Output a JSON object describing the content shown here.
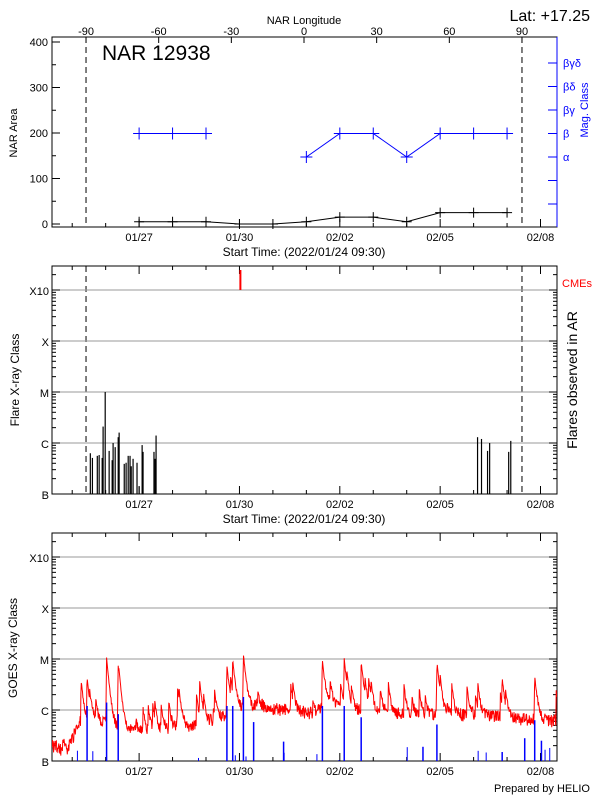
{
  "header": {
    "lat_label": "Lat: +17.25",
    "credit": "Prepared by HELIO"
  },
  "chart_data": [
    {
      "type": "line",
      "title": "NAR 12938",
      "top_axis_label": "NAR Longitude",
      "top_ticks": [
        "-90",
        "-60",
        "-30",
        "0",
        "30",
        "60",
        "90"
      ],
      "top_tick_values": [
        -90,
        -60,
        -30,
        0,
        30,
        60,
        90
      ],
      "limb_longitudes": [
        -90,
        90
      ],
      "ylabel": "NAR Area",
      "ylim": [
        0,
        400
      ],
      "yticks": [
        "0",
        "100",
        "200",
        "300",
        "400"
      ],
      "y2label": "Mag. Class",
      "y2_ticks": [
        "",
        "",
        "α",
        "β",
        "βγ",
        "βδ",
        "βγδ"
      ],
      "xlabel": "Start Time: (2022/01/24 09:30)",
      "xticks": [
        "01/27",
        "01/30",
        "02/02",
        "02/05",
        "02/08"
      ],
      "series": [
        {
          "key": "area",
          "color": "#000000",
          "points": [
            {
              "date": "01/27",
              "value": 5
            },
            {
              "date": "01/28",
              "value": 5
            },
            {
              "date": "01/29",
              "value": 5
            },
            {
              "date": "01/30",
              "value": 0
            },
            {
              "date": "01/31",
              "value": 0
            },
            {
              "date": "02/01",
              "value": 5
            },
            {
              "date": "02/02",
              "value": 15
            },
            {
              "date": "02/03",
              "value": 15
            },
            {
              "date": "02/04",
              "value": 5
            },
            {
              "date": "02/05",
              "value": 25
            },
            {
              "date": "02/06",
              "value": 25
            },
            {
              "date": "02/07",
              "value": 25
            }
          ]
        },
        {
          "key": "mag_class",
          "color": "#0000ff",
          "points": [
            {
              "date": "01/27",
              "value": "β"
            },
            {
              "date": "01/28",
              "value": "β"
            },
            {
              "date": "01/29",
              "value": "β"
            },
            {
              "date": "01/30",
              "value": null
            },
            {
              "date": "01/31",
              "value": null
            },
            {
              "date": "02/01",
              "value": "α"
            },
            {
              "date": "02/02",
              "value": "β"
            },
            {
              "date": "02/03",
              "value": "β"
            },
            {
              "date": "02/04",
              "value": "α"
            },
            {
              "date": "02/05",
              "value": "β"
            },
            {
              "date": "02/06",
              "value": "β"
            },
            {
              "date": "02/07",
              "value": "β"
            }
          ]
        }
      ]
    },
    {
      "type": "bar",
      "ylabel": "Flare X-ray Class",
      "y2label": "Flares observed in AR",
      "yticks": [
        "B",
        "C",
        "M",
        "X",
        "X10"
      ],
      "xlabel": "Start Time: (2022/01/24 09:30)",
      "xticks": [
        "01/27",
        "01/30",
        "02/02",
        "02/05",
        "02/08"
      ],
      "grid": true,
      "cme_label": "CMEs",
      "cme_color": "#ff0000",
      "cmes": [
        "01/30 00:40"
      ],
      "flares": [
        {
          "time": "01/25 13:00",
          "class": "B6.3"
        },
        {
          "time": "01/25 14:30",
          "class": "B5.1"
        },
        {
          "time": "01/25 18:00",
          "class": "B5.6"
        },
        {
          "time": "01/25 19:20",
          "class": "B5.8"
        },
        {
          "time": "01/25 21:30",
          "class": "B5.1"
        },
        {
          "time": "01/25 22:10",
          "class": "C2.1"
        },
        {
          "time": "01/25 23:40",
          "class": "M1.0"
        },
        {
          "time": "01/26 02:30",
          "class": "B7.0"
        },
        {
          "time": "01/26 04:40",
          "class": "B4.6"
        },
        {
          "time": "01/26 05:20",
          "class": "C1.0"
        },
        {
          "time": "01/26 06:50",
          "class": "B8.3"
        },
        {
          "time": "01/26 09:00",
          "class": "C1.3"
        },
        {
          "time": "01/26 09:40",
          "class": "C1.6"
        },
        {
          "time": "01/26 13:20",
          "class": "B3.9"
        },
        {
          "time": "01/26 14:40",
          "class": "B4.1"
        },
        {
          "time": "01/26 16:10",
          "class": "B5.6"
        },
        {
          "time": "01/26 17:30",
          "class": "B5.6"
        },
        {
          "time": "01/26 18:20",
          "class": "B3.5"
        },
        {
          "time": "01/26 19:40",
          "class": "B4.9"
        },
        {
          "time": "01/26 22:30",
          "class": "B4.1"
        },
        {
          "time": "01/27 00:00",
          "class": "B1.4"
        },
        {
          "time": "01/27 02:10",
          "class": "B9.1"
        },
        {
          "time": "01/27 02:50",
          "class": "B6.7"
        },
        {
          "time": "01/27 10:40",
          "class": "B6.7"
        },
        {
          "time": "01/27 11:30",
          "class": "B4.9"
        },
        {
          "time": "01/27 12:10",
          "class": "C1.4"
        },
        {
          "time": "02/06 02:50",
          "class": "C1.3"
        },
        {
          "time": "02/06 05:40",
          "class": "C1.2"
        },
        {
          "time": "02/06 10:00",
          "class": "B7.0"
        },
        {
          "time": "02/06 11:30",
          "class": "C1.0"
        },
        {
          "time": "02/07 01:10",
          "class": "B6.7"
        },
        {
          "time": "02/07 02:40",
          "class": "C1.1"
        }
      ]
    },
    {
      "type": "line",
      "ylabel": "GOES X-ray Class",
      "yticks": [
        "B",
        "C",
        "M",
        "X",
        "X10"
      ],
      "xticks": [
        "01/27",
        "01/30",
        "02/02",
        "02/05",
        "02/08"
      ],
      "grid": true,
      "series": [
        {
          "key": "goes_long",
          "color": "#ff0000",
          "baseline": [
            {
              "time": "01/24 09:30",
              "class": "B2.0"
            },
            {
              "time": "01/24 20:00",
              "class": "B1.5"
            },
            {
              "time": "01/25 06:00",
              "class": "B6.0"
            },
            {
              "time": "01/25 18:00",
              "class": "B6.0"
            },
            {
              "time": "01/26 12:00",
              "class": "B4.0"
            },
            {
              "time": "01/27 06:00",
              "class": "B3.5"
            },
            {
              "time": "01/28 00:00",
              "class": "B4.5"
            },
            {
              "time": "01/28 18:00",
              "class": "B5.0"
            },
            {
              "time": "01/29 12:00",
              "class": "B7.0"
            },
            {
              "time": "01/29 20:00",
              "class": "C1.0"
            },
            {
              "time": "01/30 12:00",
              "class": "C1.2"
            },
            {
              "time": "01/31 06:00",
              "class": "C1.0"
            },
            {
              "time": "02/01 06:00",
              "class": "B8.5"
            },
            {
              "time": "02/01 18:00",
              "class": "C1.5"
            },
            {
              "time": "02/02 06:00",
              "class": "B9.0"
            },
            {
              "time": "02/02 18:00",
              "class": "C1.0"
            },
            {
              "time": "02/03 12:00",
              "class": "B8.5"
            },
            {
              "time": "02/04 12:00",
              "class": "B8.0"
            },
            {
              "time": "02/05 12:00",
              "class": "B8.0"
            },
            {
              "time": "02/06 12:00",
              "class": "B7.5"
            },
            {
              "time": "02/07 12:00",
              "class": "B6.5"
            },
            {
              "time": "02/08 12:00",
              "class": "B6.0"
            }
          ],
          "peaks": [
            {
              "time": "01/25 06:20",
              "class": "C2.1"
            },
            {
              "time": "01/25 10:40",
              "class": "C3.6"
            },
            {
              "time": "01/26 00:40",
              "class": "M1.0"
            },
            {
              "time": "01/26 09:00",
              "class": "C7.0"
            },
            {
              "time": "01/28 03:40",
              "class": "C2.4"
            },
            {
              "time": "01/28 19:30",
              "class": "C3.0"
            },
            {
              "time": "01/29 15:00",
              "class": "C6.6"
            },
            {
              "time": "01/29 19:10",
              "class": "C7.5"
            },
            {
              "time": "01/30 02:50",
              "class": "M1.1"
            },
            {
              "time": "02/01 11:30",
              "class": "C8.4"
            },
            {
              "time": "02/02 03:10",
              "class": "C8.8"
            },
            {
              "time": "02/02 15:20",
              "class": "C7.8"
            },
            {
              "time": "02/04 21:40",
              "class": "C5.5"
            },
            {
              "time": "02/06 20:30",
              "class": "C2.9"
            },
            {
              "time": "02/07 19:50",
              "class": "C3.6"
            }
          ]
        },
        {
          "key": "goes_short",
          "color": "#0000ff",
          "peaks": [
            {
              "time": "01/25 10:40",
              "class": "C1.2"
            },
            {
              "time": "01/26 00:40",
              "class": "C1.4"
            },
            {
              "time": "01/26 09:00",
              "class": "B8.3"
            },
            {
              "time": "01/29 15:00",
              "class": "C1.2"
            },
            {
              "time": "01/29 19:10",
              "class": "C1.2"
            },
            {
              "time": "01/30 02:50",
              "class": "C1.8"
            },
            {
              "time": "01/30 10:10",
              "class": "B5.8"
            },
            {
              "time": "01/31 07:40",
              "class": "B2.4"
            },
            {
              "time": "02/01 11:30",
              "class": "C1.2"
            },
            {
              "time": "02/02 03:10",
              "class": "C1.2"
            },
            {
              "time": "02/02 15:20",
              "class": "B7.2"
            },
            {
              "time": "02/04 11:40",
              "class": "B1.9"
            },
            {
              "time": "02/04 21:40",
              "class": "B5.2"
            },
            {
              "time": "02/06 20:30",
              "class": "B1.5"
            },
            {
              "time": "02/07 12:40",
              "class": "B2.8"
            },
            {
              "time": "02/07 19:50",
              "class": "B6.3"
            },
            {
              "time": "02/08 00:40",
              "class": "B2.5"
            }
          ]
        }
      ]
    }
  ]
}
